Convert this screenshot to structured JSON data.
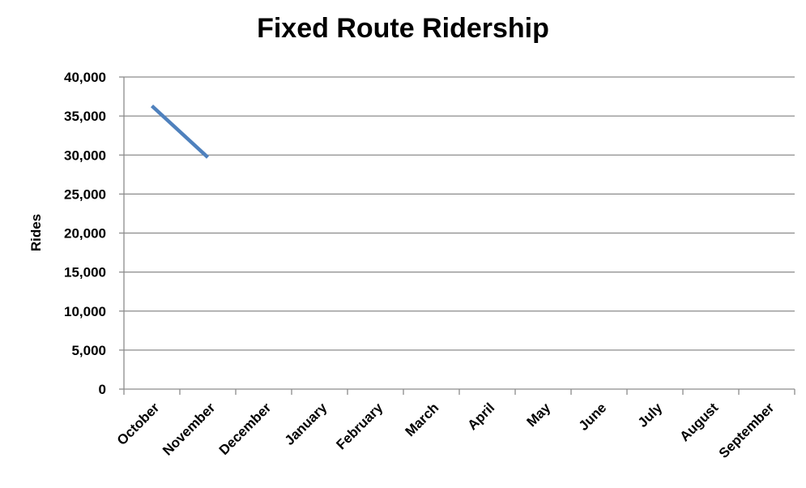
{
  "chart_data": {
    "type": "line",
    "title": "Fixed Route Ridership",
    "xlabel": "",
    "ylabel": "Rides",
    "categories": [
      "October",
      "November",
      "December",
      "January",
      "February",
      "March",
      "April",
      "May",
      "June",
      "July",
      "August",
      "September"
    ],
    "series": [
      {
        "values": [
          36300,
          29700,
          null,
          null,
          null,
          null,
          null,
          null,
          null,
          null,
          null,
          null
        ],
        "color": "#4F81BD"
      }
    ],
    "ylim": [
      0,
      40000
    ],
    "yticks": [
      0,
      5000,
      10000,
      15000,
      20000,
      25000,
      30000,
      35000,
      40000
    ],
    "ytick_labels": [
      "0",
      "5,000",
      "10,000",
      "15,000",
      "20,000",
      "25,000",
      "30,000",
      "35,000",
      "40,000"
    ],
    "grid": true,
    "legend": "none"
  }
}
